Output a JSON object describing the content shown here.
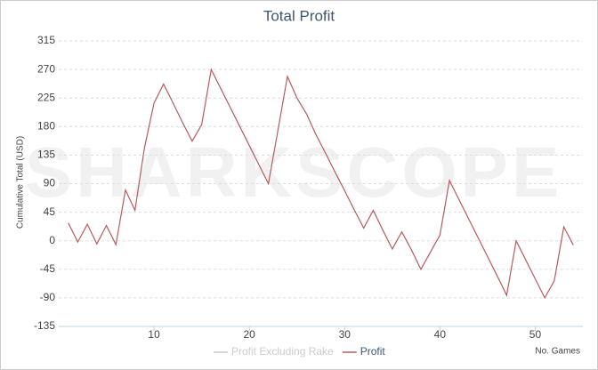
{
  "chart_data": {
    "type": "line",
    "title": "Total Profit",
    "watermark": "SHARKSCOPE",
    "ylabel": "Cumulative Total (USD)",
    "xlabel": "No. Games",
    "x": [
      1,
      2,
      3,
      4,
      5,
      6,
      7,
      8,
      9,
      10,
      11,
      12,
      13,
      14,
      15,
      16,
      17,
      18,
      19,
      20,
      21,
      22,
      23,
      24,
      25,
      26,
      27,
      28,
      29,
      30,
      31,
      32,
      33,
      34,
      35,
      36,
      37,
      38,
      39,
      40,
      41,
      42,
      43,
      44,
      45,
      46,
      47,
      48,
      49,
      50,
      51,
      52,
      53,
      54
    ],
    "series": [
      {
        "name": "Profit",
        "color": "#b85c5c",
        "values": [
          28,
          -2,
          26,
          -5,
          24,
          -6,
          80,
          48,
          147,
          217,
          247,
          217,
          186,
          157,
          183,
          270,
          240,
          210,
          180,
          150,
          120,
          90,
          174,
          259,
          225,
          200,
          167,
          138,
          108,
          79,
          49,
          20,
          48,
          17,
          -13,
          14,
          -14,
          -45,
          -18,
          9,
          95,
          65,
          35,
          5,
          -25,
          -55,
          -86,
          0,
          -30,
          -60,
          -90,
          -63,
          22,
          -7
        ]
      }
    ],
    "legend": [
      {
        "name": "Profit Excluding Rake",
        "color": "#cccccc",
        "active": false
      },
      {
        "name": "Profit",
        "color": "#b85c5c",
        "active": true
      }
    ],
    "xlim": [
      0,
      55
    ],
    "xticks": [
      10,
      20,
      30,
      40,
      50
    ],
    "ylim": [
      -135,
      315
    ],
    "yticks": [
      315,
      270,
      225,
      180,
      135,
      90,
      45,
      0,
      -45,
      -90,
      -135
    ],
    "grid": true
  }
}
